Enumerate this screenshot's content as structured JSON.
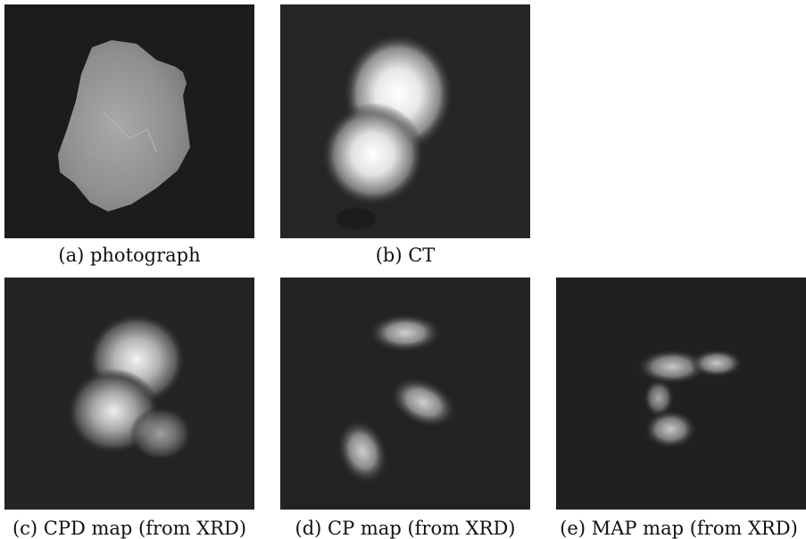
{
  "figure": {
    "panels": [
      {
        "id": "a",
        "caption": "(a) photograph"
      },
      {
        "id": "b",
        "caption": "(b) CT"
      },
      {
        "id": "c",
        "caption": "(c) CPD map (from XRD)"
      },
      {
        "id": "d",
        "caption": "(d) CP map (from XRD)"
      },
      {
        "id": "e",
        "caption": "(e) MAP map (from XRD)"
      }
    ]
  }
}
